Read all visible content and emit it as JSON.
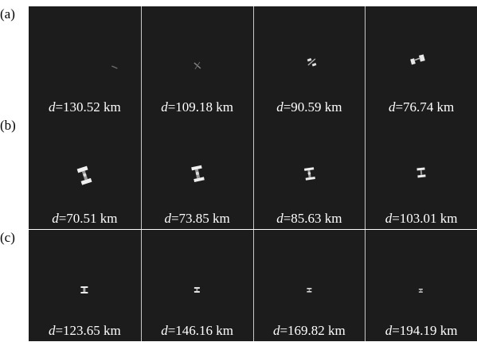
{
  "rows": [
    {
      "label": "(a)",
      "panels": [
        {
          "value": "130.52",
          "unit": "km"
        },
        {
          "value": "109.18",
          "unit": "km"
        },
        {
          "value": "90.59",
          "unit": "km"
        },
        {
          "value": "76.74",
          "unit": "km"
        }
      ]
    },
    {
      "label": "(b)",
      "panels": [
        {
          "value": "70.51",
          "unit": "km"
        },
        {
          "value": "73.85",
          "unit": "km"
        },
        {
          "value": "85.63",
          "unit": "km"
        },
        {
          "value": "103.01",
          "unit": "km"
        }
      ]
    },
    {
      "label": "(c)",
      "panels": [
        {
          "value": "123.65",
          "unit": "km"
        },
        {
          "value": "146.16",
          "unit": "km"
        },
        {
          "value": "169.82",
          "unit": "km"
        },
        {
          "value": "194.19",
          "unit": "km"
        }
      ]
    }
  ],
  "symbol": "d",
  "equals": "=",
  "colors": {
    "panel_bg": "#1c1c1c",
    "text": "#ffffff",
    "target": "#e6e6e6",
    "divider": "#c8c8c8"
  }
}
